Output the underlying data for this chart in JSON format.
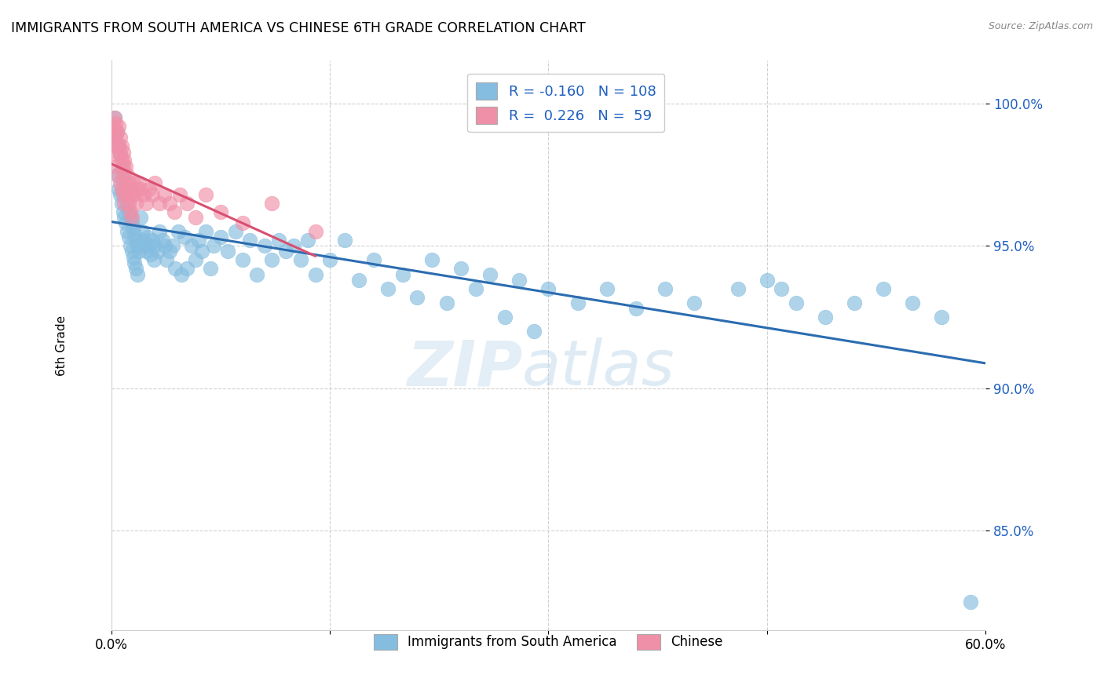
{
  "title": "IMMIGRANTS FROM SOUTH AMERICA VS CHINESE 6TH GRADE CORRELATION CHART",
  "source": "Source: ZipAtlas.com",
  "ylabel": "6th Grade",
  "blue_R": -0.16,
  "blue_N": 108,
  "pink_R": 0.226,
  "pink_N": 59,
  "blue_color": "#85bde0",
  "pink_color": "#f090a8",
  "blue_line_color": "#2b6cb0",
  "pink_line_color": "#d94f70",
  "legend_label_blue": "Immigrants from South America",
  "legend_label_pink": "Chinese",
  "watermark_zip": "ZIP",
  "watermark_atlas": "atlas",
  "xmin": 0.0,
  "xmax": 0.6,
  "ymin": 81.5,
  "ymax": 101.5,
  "ytick_vals": [
    85.0,
    90.0,
    95.0,
    100.0
  ],
  "ytick_labels": [
    "85.0%",
    "90.0%",
    "95.0%",
    "100.0%"
  ],
  "xtick_vals": [
    0.0,
    0.15,
    0.3,
    0.45,
    0.6
  ],
  "xtick_labels": [
    "0.0%",
    "",
    "",
    "",
    "60.0%"
  ],
  "blue_scatter_x": [
    0.002,
    0.003,
    0.004,
    0.004,
    0.005,
    0.005,
    0.006,
    0.006,
    0.007,
    0.007,
    0.008,
    0.008,
    0.009,
    0.009,
    0.01,
    0.01,
    0.011,
    0.011,
    0.012,
    0.012,
    0.013,
    0.013,
    0.014,
    0.014,
    0.015,
    0.015,
    0.016,
    0.016,
    0.017,
    0.017,
    0.018,
    0.018,
    0.019,
    0.02,
    0.021,
    0.022,
    0.023,
    0.024,
    0.025,
    0.026,
    0.027,
    0.028,
    0.029,
    0.03,
    0.032,
    0.033,
    0.035,
    0.037,
    0.038,
    0.04,
    0.042,
    0.044,
    0.046,
    0.048,
    0.05,
    0.052,
    0.055,
    0.058,
    0.06,
    0.062,
    0.065,
    0.068,
    0.07,
    0.075,
    0.08,
    0.085,
    0.09,
    0.095,
    0.1,
    0.105,
    0.11,
    0.115,
    0.12,
    0.125,
    0.13,
    0.135,
    0.14,
    0.15,
    0.16,
    0.17,
    0.18,
    0.19,
    0.2,
    0.21,
    0.22,
    0.23,
    0.24,
    0.25,
    0.26,
    0.27,
    0.28,
    0.29,
    0.3,
    0.32,
    0.34,
    0.36,
    0.38,
    0.4,
    0.43,
    0.45,
    0.46,
    0.47,
    0.49,
    0.51,
    0.53,
    0.55,
    0.57,
    0.59
  ],
  "blue_scatter_y": [
    99.5,
    98.8,
    99.0,
    97.5,
    98.5,
    97.0,
    98.2,
    96.8,
    97.8,
    96.5,
    97.5,
    96.2,
    97.0,
    96.0,
    96.8,
    95.8,
    96.5,
    95.5,
    96.2,
    95.3,
    96.0,
    95.0,
    95.8,
    94.8,
    95.6,
    94.6,
    95.4,
    94.4,
    95.2,
    94.2,
    95.0,
    94.0,
    94.8,
    96.0,
    95.5,
    95.2,
    95.0,
    94.8,
    95.3,
    95.0,
    94.7,
    95.2,
    94.5,
    95.0,
    94.8,
    95.5,
    95.2,
    95.0,
    94.5,
    94.8,
    95.0,
    94.2,
    95.5,
    94.0,
    95.3,
    94.2,
    95.0,
    94.5,
    95.2,
    94.8,
    95.5,
    94.2,
    95.0,
    95.3,
    94.8,
    95.5,
    94.5,
    95.2,
    94.0,
    95.0,
    94.5,
    95.2,
    94.8,
    95.0,
    94.5,
    95.2,
    94.0,
    94.5,
    95.2,
    93.8,
    94.5,
    93.5,
    94.0,
    93.2,
    94.5,
    93.0,
    94.2,
    93.5,
    94.0,
    92.5,
    93.8,
    92.0,
    93.5,
    93.0,
    93.5,
    92.8,
    93.5,
    93.0,
    93.5,
    93.8,
    93.5,
    93.0,
    92.5,
    93.0,
    93.5,
    93.0,
    92.5,
    82.5
  ],
  "pink_scatter_x": [
    0.001,
    0.001,
    0.002,
    0.002,
    0.002,
    0.003,
    0.003,
    0.003,
    0.004,
    0.004,
    0.004,
    0.005,
    0.005,
    0.005,
    0.006,
    0.006,
    0.006,
    0.007,
    0.007,
    0.007,
    0.008,
    0.008,
    0.008,
    0.009,
    0.009,
    0.009,
    0.01,
    0.01,
    0.011,
    0.011,
    0.012,
    0.012,
    0.013,
    0.013,
    0.014,
    0.014,
    0.015,
    0.016,
    0.017,
    0.018,
    0.019,
    0.02,
    0.022,
    0.024,
    0.026,
    0.028,
    0.03,
    0.033,
    0.036,
    0.04,
    0.043,
    0.047,
    0.052,
    0.058,
    0.065,
    0.075,
    0.09,
    0.11,
    0.14
  ],
  "pink_scatter_y": [
    99.2,
    98.8,
    99.5,
    99.0,
    98.5,
    99.3,
    98.8,
    98.2,
    99.0,
    98.5,
    97.8,
    99.2,
    98.5,
    97.5,
    98.8,
    98.2,
    97.2,
    98.5,
    98.0,
    97.0,
    98.3,
    97.8,
    96.8,
    98.0,
    97.5,
    96.5,
    97.8,
    97.0,
    97.5,
    96.8,
    97.2,
    96.5,
    97.0,
    96.2,
    96.8,
    96.0,
    97.2,
    96.8,
    96.5,
    97.0,
    97.2,
    97.0,
    96.8,
    96.5,
    97.0,
    96.8,
    97.2,
    96.5,
    96.8,
    96.5,
    96.2,
    96.8,
    96.5,
    96.0,
    96.8,
    96.2,
    95.8,
    96.5,
    95.5
  ]
}
